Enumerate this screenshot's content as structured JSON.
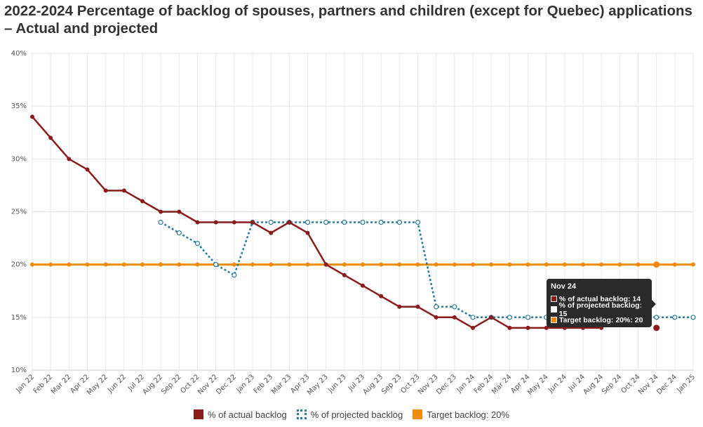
{
  "title": "2022-2024 Percentage of backlog of spouses, partners and children (except for Quebec) applications – Actual and projected",
  "chart_data": {
    "type": "line",
    "categories": [
      "Jan 22",
      "Feb 22",
      "Mar 22",
      "Apr 22",
      "May 22",
      "Jun 22",
      "Jul 22",
      "Aug 22",
      "Sep 22",
      "Oct 22",
      "Nov 22",
      "Dec 22",
      "Jan 23",
      "Feb 23",
      "Mar 23",
      "Apr 23",
      "May 23",
      "Jun 23",
      "Jul 23",
      "Aug 23",
      "Sep 23",
      "Oct 23",
      "Nov 23",
      "Dec 23",
      "Jan 24",
      "Feb 24",
      "Mar 24",
      "Apr 24",
      "May 24",
      "Jun 24",
      "Jul 24",
      "Aug 24",
      "Sep 24",
      "Oct 24",
      "Nov 24",
      "Dec 24",
      "Jan 25"
    ],
    "yticks": [
      "10%",
      "15%",
      "20%",
      "25%",
      "30%",
      "35%",
      "40%"
    ],
    "ylim": [
      10,
      40
    ],
    "ytick_values": [
      10,
      15,
      20,
      25,
      30,
      35,
      40
    ],
    "grid": true,
    "legend_position": "bottom",
    "series": [
      {
        "name": "% of actual backlog",
        "color": "#8b1c1c",
        "style": "solid",
        "values": [
          34,
          32,
          30,
          29,
          27,
          27,
          26,
          25,
          25,
          24,
          24,
          24,
          24,
          23,
          24,
          23,
          20,
          19,
          18,
          17,
          16,
          16,
          15,
          15,
          14,
          15,
          14,
          14,
          14,
          14,
          14,
          14,
          null,
          null,
          14,
          null,
          null
        ]
      },
      {
        "name": "% of projected backlog",
        "color": "#2a7a96",
        "style": "dotted",
        "values": [
          null,
          null,
          null,
          null,
          null,
          null,
          null,
          24,
          23,
          22,
          20,
          19,
          24,
          24,
          24,
          24,
          24,
          24,
          24,
          24,
          24,
          24,
          16,
          16,
          15,
          15,
          15,
          15,
          15,
          15,
          15,
          15,
          15,
          15,
          15,
          15,
          15
        ]
      },
      {
        "name": "Target backlog: 20%",
        "color": "#f08a0c",
        "style": "solid",
        "values": [
          20,
          20,
          20,
          20,
          20,
          20,
          20,
          20,
          20,
          20,
          20,
          20,
          20,
          20,
          20,
          20,
          20,
          20,
          20,
          20,
          20,
          20,
          20,
          20,
          20,
          20,
          20,
          20,
          20,
          20,
          20,
          20,
          20,
          20,
          20,
          20,
          20
        ]
      }
    ],
    "tooltip": {
      "title": "Nov 24",
      "rows": [
        {
          "label": "% of actual backlog: 14",
          "color": "#8b1c1c"
        },
        {
          "label": "% of projected backlog: 15",
          "color": "#ffffff"
        },
        {
          "label": "Target backlog: 20%: 20",
          "color": "#f08a0c"
        }
      ]
    }
  },
  "legend": {
    "actual": "% of actual backlog",
    "projected": "% of projected backlog",
    "target": "Target backlog: 20%"
  }
}
